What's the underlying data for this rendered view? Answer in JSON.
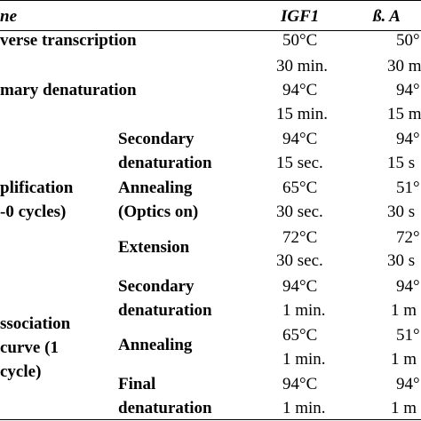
{
  "header": {
    "step_col": "ne",
    "col_igf1": "IGF1",
    "col_bactin": "ß. A"
  },
  "rows": {
    "reverse_transcription": {
      "label": "verse transcription",
      "igf1_temp": "50°C",
      "bactin_temp": "50°",
      "igf1_time": "30 min.",
      "bactin_time": "30 m"
    },
    "primary_denaturation": {
      "label": "mary denaturation",
      "igf1_temp": "94°C",
      "bactin_temp": "94°",
      "igf1_time": "15 min.",
      "bactin_time": "15 m"
    },
    "amplification": {
      "label_line1": "plification",
      "label_line2": "-0 cycles)",
      "secondary_denaturation": {
        "label_line1": "Secondary",
        "label_line2": "denaturation",
        "igf1_temp": "94°C",
        "bactin_temp": "94°",
        "igf1_time": "15 sec.",
        "bactin_time": "15 s"
      },
      "annealing": {
        "label_line1": "Annealing",
        "label_line2": "(Optics on)",
        "igf1_temp": "65°C",
        "bactin_temp": "51°",
        "igf1_time": "30 sec.",
        "bactin_time": "30 s"
      },
      "extension": {
        "label": "Extension",
        "igf1_temp": "72°C",
        "bactin_temp": "72°",
        "igf1_time": "30 sec.",
        "bactin_time": "30 s"
      }
    },
    "dissociation": {
      "label_line1": "ssociation",
      "label_line2": "curve (1",
      "label_line3": "cycle)",
      "secondary_denaturation": {
        "label_line1": "Secondary",
        "label_line2": "denaturation",
        "igf1_temp": "94°C",
        "bactin_temp": "94°",
        "igf1_time": "1 min.",
        "bactin_time": "1 m"
      },
      "annealing": {
        "label": "Annealing",
        "igf1_temp": "65°C",
        "bactin_temp": "51°",
        "igf1_time": "1 min.",
        "bactin_time": "1 m"
      },
      "final_denaturation": {
        "label_line1": "Final",
        "label_line2": "denaturation",
        "igf1_temp": "94°C",
        "bactin_temp": "94°",
        "igf1_time": "1 min.",
        "bactin_time": "1 m"
      }
    }
  }
}
